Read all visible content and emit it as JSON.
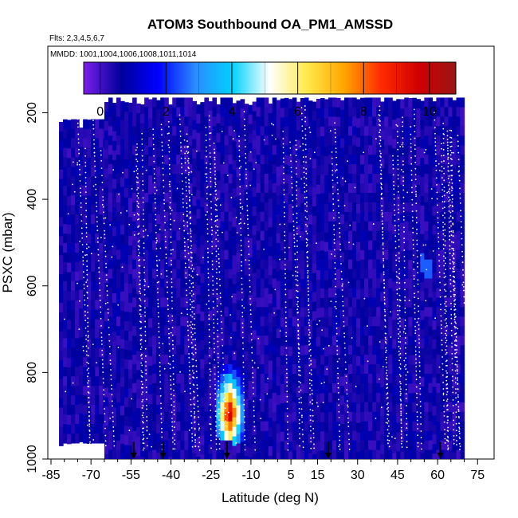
{
  "chart_data": {
    "type": "heatmap",
    "title": "ATOM3 Southbound OA_PM1_AMSSD",
    "flights_note": "Flts: 2,3,4,5,6,7",
    "dates_note": "MMDD: 1001,1004,1006,1008,1011,1014",
    "xlabel": "Latitude (deg N)",
    "ylabel": "PSXC (mbar)",
    "x_ticks": [
      "-85",
      "-70",
      "-55",
      "-40",
      "-25",
      "-10",
      "5",
      "15",
      "30",
      "45",
      "60",
      "75"
    ],
    "y_ticks": [
      "200",
      "400",
      "600",
      "800",
      "1000"
    ],
    "xlim": [
      -85,
      80
    ],
    "ylim": [
      1000,
      50
    ],
    "y_reversed": true,
    "colorbar": {
      "ticks": [
        "0",
        "2",
        "4",
        "6",
        "8",
        "10"
      ],
      "range": [
        -0.5,
        10.8
      ],
      "colors": [
        "#7a1fe8",
        "#00009c",
        "#0000ff",
        "#2a8cff",
        "#00d2ff",
        "#ffffff",
        "#ffe94a",
        "#ffa500",
        "#ff2a00",
        "#d00000",
        "#9a1515"
      ]
    },
    "background_value": 0.5,
    "profile_markers_lat": [
      -54,
      -43,
      -19,
      19,
      61
    ],
    "hotspot": {
      "lat": -18,
      "psxc_range": [
        780,
        960
      ],
      "peak_value": 10.5
    },
    "local_enhancement": {
      "lat": 56,
      "psxc_range": [
        530,
        575
      ],
      "value": 2.5
    },
    "coverage": [
      {
        "lat_range": [
          -82,
          -63
        ],
        "psxc_range": [
          215,
          960
        ]
      },
      {
        "lat_range": [
          -65,
          70
        ],
        "psxc_range": [
          165,
          1000
        ]
      }
    ]
  }
}
